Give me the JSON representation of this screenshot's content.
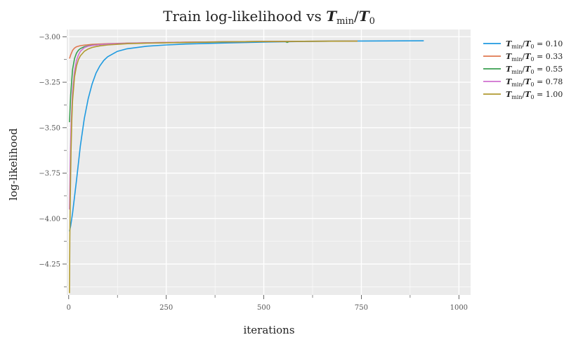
{
  "chart_data": {
    "type": "line",
    "title": "Train log-likelihood vs T_min/T_0",
    "title_parts": {
      "prefix": "Train log-likelihood vs ",
      "t1": "T",
      "sub1": "min",
      "slash": "/",
      "t2": "T",
      "sub2": "0"
    },
    "xlabel": "iterations",
    "ylabel": "log-likelihood",
    "xlim": [
      -5,
      1030
    ],
    "ylim": [
      -4.42,
      -2.96
    ],
    "x_ticks": [
      0,
      250,
      500,
      750,
      1000
    ],
    "x_tick_labels": [
      "0",
      "250",
      "500",
      "750",
      "1000"
    ],
    "y_ticks": [
      -3.0,
      -3.25,
      -3.5,
      -3.75,
      -4.0,
      -4.25
    ],
    "y_tick_labels": [
      "−3.00",
      "−3.25",
      "−3.50",
      "−3.75",
      "−4.00",
      "−4.25"
    ],
    "grid": true,
    "legend_position": "outside-right",
    "series": [
      {
        "name": "T_min/T_0 = 0.10",
        "value_label": "0.10",
        "color": "#1f9ae0",
        "x": [
          2,
          5,
          10,
          20,
          30,
          40,
          50,
          60,
          70,
          80,
          90,
          100,
          125,
          150,
          200,
          250,
          300,
          400,
          500,
          600,
          700,
          800,
          910
        ],
        "y": [
          -4.07,
          -4.04,
          -3.97,
          -3.79,
          -3.6,
          -3.45,
          -3.34,
          -3.26,
          -3.2,
          -3.16,
          -3.13,
          -3.11,
          -3.08,
          -3.066,
          -3.052,
          -3.045,
          -3.04,
          -3.034,
          -3.029,
          -3.026,
          -3.024,
          -3.023,
          -3.022
        ]
      },
      {
        "name": "T_min/T_0 = 0.33",
        "value_label": "0.33",
        "color": "#e07850",
        "x": [
          2,
          5,
          10,
          15,
          20,
          30,
          40,
          60,
          80,
          100,
          150,
          200,
          300,
          400,
          500,
          600,
          740
        ],
        "y": [
          -3.12,
          -3.1,
          -3.075,
          -3.062,
          -3.055,
          -3.049,
          -3.046,
          -3.042,
          -3.04,
          -3.038,
          -3.035,
          -3.033,
          -3.03,
          -3.028,
          -3.026,
          -3.025,
          -3.024
        ]
      },
      {
        "name": "T_min/T_0 = 0.55",
        "value_label": "0.55",
        "color": "#3a9f50",
        "x": [
          2,
          5,
          10,
          15,
          20,
          25,
          30,
          40,
          50,
          60,
          80,
          100,
          150,
          200,
          300,
          400,
          500,
          555,
          560,
          565,
          600,
          700,
          740
        ],
        "y": [
          -3.47,
          -3.32,
          -3.18,
          -3.12,
          -3.09,
          -3.074,
          -3.065,
          -3.055,
          -3.05,
          -3.047,
          -3.043,
          -3.04,
          -3.036,
          -3.034,
          -3.031,
          -3.028,
          -3.026,
          -3.026,
          -3.031,
          -3.026,
          -3.025,
          -3.024,
          -3.024
        ]
      },
      {
        "name": "T_min/T_0 = 0.78",
        "value_label": "0.78",
        "color": "#d070d0",
        "x": [
          2,
          4,
          6,
          10,
          15,
          20,
          25,
          30,
          40,
          50,
          60,
          80,
          100,
          150,
          200,
          300,
          400,
          500,
          600,
          740
        ],
        "y": [
          -3.95,
          -3.7,
          -3.5,
          -3.3,
          -3.19,
          -3.13,
          -3.1,
          -3.08,
          -3.06,
          -3.052,
          -3.048,
          -3.043,
          -3.04,
          -3.036,
          -3.033,
          -3.03,
          -3.028,
          -3.026,
          -3.025,
          -3.024
        ]
      },
      {
        "name": "T_min/T_0 = 1.00",
        "value_label": "1.00",
        "color": "#b09a30",
        "x": [
          2,
          3,
          4,
          5,
          6,
          8,
          10,
          15,
          20,
          25,
          30,
          40,
          50,
          60,
          70,
          80,
          100,
          150,
          200,
          300,
          400,
          500,
          600,
          740
        ],
        "y": [
          -4.41,
          -4.1,
          -3.9,
          -3.75,
          -3.63,
          -3.46,
          -3.35,
          -3.22,
          -3.16,
          -3.125,
          -3.105,
          -3.08,
          -3.067,
          -3.059,
          -3.054,
          -3.05,
          -3.045,
          -3.038,
          -3.035,
          -3.031,
          -3.028,
          -3.026,
          -3.025,
          -3.024
        ]
      }
    ]
  }
}
